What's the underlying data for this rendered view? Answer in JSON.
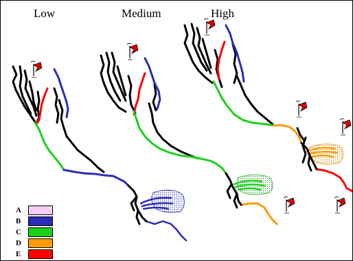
{
  "titles": {
    "low": "Low",
    "medium": "Medium",
    "high": "High"
  },
  "legend": [
    {
      "key": "A",
      "color": "#f4ccf4"
    },
    {
      "key": "B",
      "color": "#2b2bb8"
    },
    {
      "key": "C",
      "color": "#1ad01a"
    },
    {
      "key": "D",
      "color": "#ff9a00"
    },
    {
      "key": "E",
      "color": "#ff0000"
    }
  ],
  "colors": {
    "stream": "#000000",
    "flag": "#e00000"
  }
}
